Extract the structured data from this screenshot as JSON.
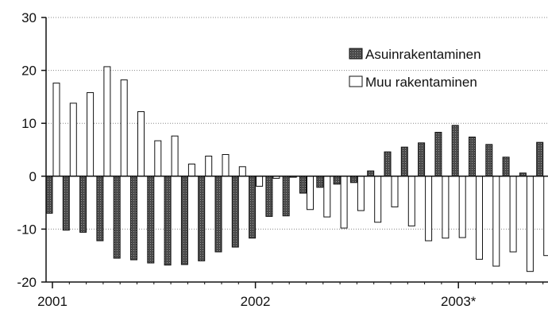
{
  "chart_data": {
    "type": "bar",
    "ylim": [
      -20,
      30
    ],
    "yticks": [
      30,
      20,
      10,
      0,
      -10,
      -20
    ],
    "grid": true,
    "legend_placement": "top-right",
    "x_labels": [
      {
        "label": "2001",
        "month_index": 0
      },
      {
        "label": "2002",
        "month_index": 12
      },
      {
        "label": "2003*",
        "month_index": 24
      }
    ],
    "series": [
      {
        "name": "Asuinrakentaminen",
        "color": "#555555",
        "values": [
          -7.0,
          -10.2,
          -10.6,
          -12.2,
          -15.5,
          -15.8,
          -16.4,
          -16.8,
          -16.7,
          -16.0,
          -14.3,
          -13.4,
          -11.7,
          -7.6,
          -7.5,
          -3.2,
          -2.1,
          -1.5,
          -1.2,
          1.0,
          4.6,
          5.5,
          6.3,
          8.3,
          9.6,
          7.4,
          6.0,
          3.6,
          0.6,
          6.4
        ]
      },
      {
        "name": "Muu rakentaminen",
        "color": "#ffffff",
        "values": [
          17.6,
          13.8,
          15.8,
          20.7,
          18.2,
          12.2,
          6.7,
          7.6,
          2.3,
          3.8,
          4.1,
          1.8,
          -1.9,
          -0.4,
          -0.2,
          -6.3,
          -7.7,
          -9.8,
          -6.5,
          -8.7,
          -5.8,
          -9.4,
          -12.2,
          -11.7,
          -11.6,
          -15.7,
          -17.0,
          -14.3,
          -18.0,
          -15.0
        ]
      }
    ]
  }
}
